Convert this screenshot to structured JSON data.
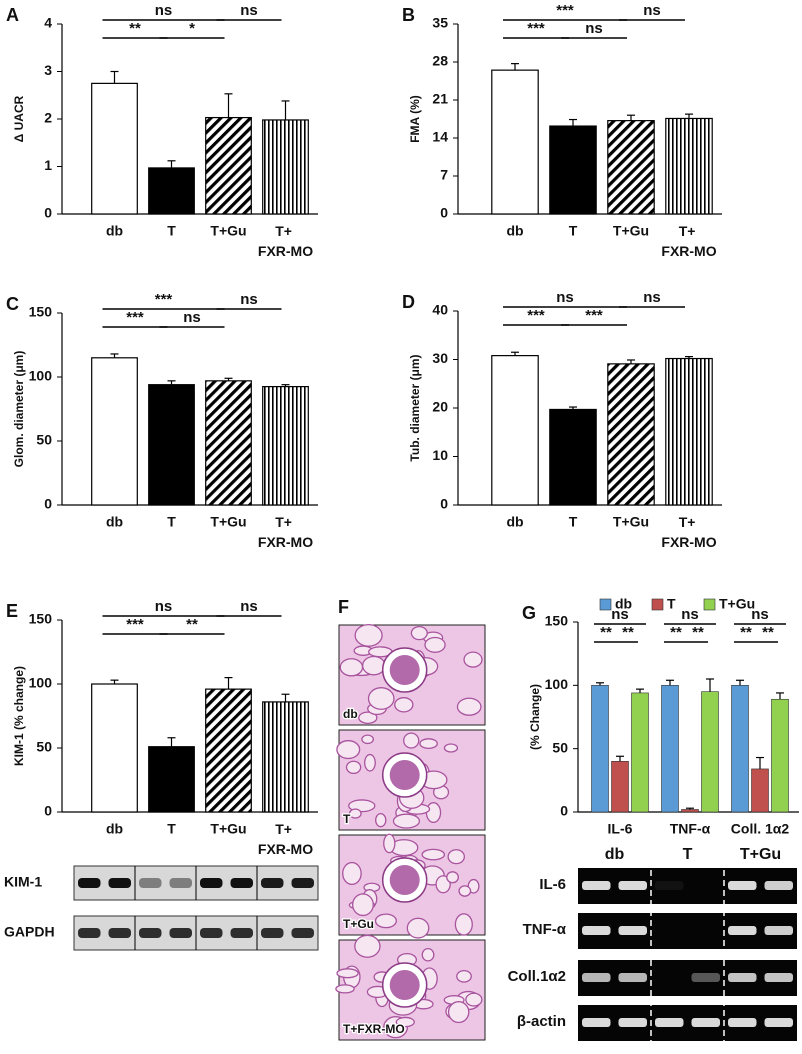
{
  "chart_data": [
    {
      "panel": "A",
      "type": "bar",
      "ylabel": "Δ UACR",
      "categories": [
        "db",
        "T",
        "T+Gu",
        "T+ FXR-MO"
      ],
      "values": [
        2.75,
        0.97,
        2.03,
        1.98
      ],
      "errors": [
        0.25,
        0.15,
        0.5,
        0.4
      ],
      "fills": [
        "white",
        "black",
        "diagonal",
        "vertical"
      ],
      "ylim": [
        0,
        4
      ],
      "yticks": [
        0,
        1,
        2,
        3,
        4
      ],
      "annotations": [
        {
          "from": 0,
          "to": 2,
          "label": "ns"
        },
        {
          "from": 0,
          "to": 1,
          "label": "**"
        },
        {
          "from": 1,
          "to": 2,
          "label": "*"
        },
        {
          "from": 2,
          "to": 3,
          "label": "ns"
        }
      ]
    },
    {
      "panel": "B",
      "type": "bar",
      "ylabel": "FMA  (%)",
      "categories": [
        "db",
        "T",
        "T+Gu",
        "T+ FXR-MO"
      ],
      "values": [
        26.5,
        16.2,
        17.2,
        17.6
      ],
      "errors": [
        1.2,
        1.2,
        1.0,
        0.8
      ],
      "fills": [
        "white",
        "black",
        "diagonal",
        "vertical"
      ],
      "ylim": [
        0,
        35
      ],
      "yticks": [
        0,
        7,
        14,
        21,
        28,
        35
      ],
      "annotations": [
        {
          "from": 0,
          "to": 2,
          "label": "***"
        },
        {
          "from": 0,
          "to": 1,
          "label": "***"
        },
        {
          "from": 1,
          "to": 2,
          "label": "ns"
        },
        {
          "from": 2,
          "to": 3,
          "label": "ns"
        }
      ]
    },
    {
      "panel": "C",
      "type": "bar",
      "ylabel": "Glom. diameter  (μm)",
      "categories": [
        "db",
        "T",
        "T+Gu",
        "T+ FXR-MO"
      ],
      "values": [
        115,
        94,
        97,
        92.5
      ],
      "errors": [
        3,
        3,
        2,
        1.5
      ],
      "fills": [
        "white",
        "black",
        "diagonal",
        "vertical"
      ],
      "ylim": [
        0,
        150
      ],
      "yticks": [
        0,
        50,
        100,
        150
      ],
      "annotations": [
        {
          "from": 0,
          "to": 2,
          "label": "***"
        },
        {
          "from": 0,
          "to": 1,
          "label": "***"
        },
        {
          "from": 1,
          "to": 2,
          "label": "ns"
        },
        {
          "from": 2,
          "to": 3,
          "label": "ns"
        }
      ]
    },
    {
      "panel": "D",
      "type": "bar",
      "ylabel": "Tub. diameter  (μm)",
      "categories": [
        "db",
        "T",
        "T+Gu",
        "T+ FXR-MO"
      ],
      "values": [
        30.8,
        19.7,
        29.1,
        30.2
      ],
      "errors": [
        0.7,
        0.5,
        0.8,
        0.4
      ],
      "fills": [
        "white",
        "black",
        "diagonal",
        "vertical"
      ],
      "ylim": [
        0,
        40
      ],
      "yticks": [
        0,
        10,
        20,
        30,
        40
      ],
      "annotations": [
        {
          "from": 0,
          "to": 2,
          "label": "ns"
        },
        {
          "from": 0,
          "to": 1,
          "label": "***"
        },
        {
          "from": 1,
          "to": 2,
          "label": "***"
        },
        {
          "from": 2,
          "to": 3,
          "label": "ns"
        }
      ]
    },
    {
      "panel": "E",
      "type": "bar",
      "ylabel": "KIM-1  (% change)",
      "categories": [
        "db",
        "T",
        "T+Gu",
        "T+ FXR-MO"
      ],
      "values": [
        100,
        51,
        96,
        86
      ],
      "errors": [
        3,
        7,
        9,
        6
      ],
      "fills": [
        "white",
        "black",
        "diagonal",
        "vertical"
      ],
      "ylim": [
        0,
        150
      ],
      "yticks": [
        0,
        50,
        100,
        150
      ],
      "annotations": [
        {
          "from": 0,
          "to": 2,
          "label": "ns"
        },
        {
          "from": 0,
          "to": 1,
          "label": "***"
        },
        {
          "from": 1,
          "to": 2,
          "label": "**"
        },
        {
          "from": 2,
          "to": 3,
          "label": "ns"
        }
      ]
    },
    {
      "panel": "G",
      "type": "grouped_bar",
      "ylabel": "(% Change)",
      "categories": [
        "IL-6",
        "TNF-α",
        "Coll. 1α2"
      ],
      "ylim": [
        0,
        150
      ],
      "yticks": [
        0,
        50,
        100,
        150
      ],
      "series": [
        {
          "name": "db",
          "color": "#5b9bd5",
          "values": [
            100,
            100,
            100
          ],
          "errors": [
            2,
            4,
            4
          ]
        },
        {
          "name": "T",
          "color": "#c0504d",
          "values": [
            40,
            2,
            34
          ],
          "errors": [
            4,
            1,
            9
          ]
        },
        {
          "name": "T+Gu",
          "color": "#92d050",
          "values": [
            94,
            95,
            89
          ],
          "errors": [
            3,
            10,
            5
          ]
        }
      ],
      "annotations": [
        {
          "group": 0,
          "from": 0,
          "to": 2,
          "label": "ns"
        },
        {
          "group": 0,
          "from": 0,
          "to": 1,
          "label": "**"
        },
        {
          "group": 0,
          "from": 1,
          "to": 2,
          "label": "**"
        },
        {
          "group": 1,
          "from": 0,
          "to": 2,
          "label": "ns"
        },
        {
          "group": 1,
          "from": 0,
          "to": 1,
          "label": "**"
        },
        {
          "group": 1,
          "from": 1,
          "to": 2,
          "label": "**"
        },
        {
          "group": 2,
          "from": 0,
          "to": 2,
          "label": "ns"
        },
        {
          "group": 2,
          "from": 0,
          "to": 1,
          "label": "**"
        },
        {
          "group": 2,
          "from": 1,
          "to": 2,
          "label": "**"
        }
      ]
    }
  ],
  "histology": {
    "panel": "F",
    "labels": [
      "db",
      "T",
      "T+Gu",
      "T+FXR-MO"
    ]
  },
  "blots": [
    {
      "panel": "E",
      "rows": [
        "KIM-1",
        "GAPDH"
      ]
    },
    {
      "panel": "G",
      "lanes": [
        "db",
        "T",
        "T+Gu"
      ],
      "rows": [
        "IL-6",
        "TNF-α",
        "Coll.1α2",
        "β-actin"
      ]
    }
  ]
}
